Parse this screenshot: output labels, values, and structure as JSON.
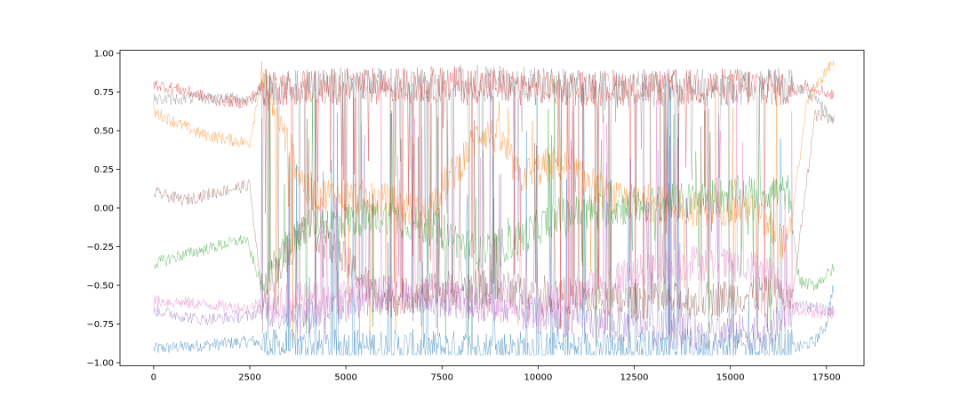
{
  "chart_data": {
    "type": "line",
    "title": "",
    "xlabel": "",
    "ylabel": "",
    "xlim": [
      -875,
      18475
    ],
    "ylim": [
      -1.02,
      1.02
    ],
    "x_ticks": [
      0,
      2500,
      5000,
      7500,
      10000,
      12500,
      15000,
      17500
    ],
    "x_tick_labels": [
      "0",
      "2500",
      "5000",
      "7500",
      "10000",
      "12500",
      "15000",
      "17500"
    ],
    "y_ticks": [
      1.0,
      0.75,
      0.5,
      0.25,
      0.0,
      -0.25,
      -0.5,
      -0.75,
      -1.0
    ],
    "y_tick_labels": [
      "1.00",
      "0.75",
      "0.50",
      "0.25",
      "0.00",
      "−0.25",
      "−0.50",
      "−0.75",
      "−1.00"
    ],
    "grid": false,
    "legend": "none",
    "x_count": 17700,
    "series": [
      {
        "color": "#1f77b4",
        "x": [
          0,
          1200,
          2600,
          3000,
          6000,
          8000,
          10000,
          12000,
          14000,
          16000,
          16800,
          17200,
          17500,
          17650
        ],
        "values": [
          -0.91,
          -0.89,
          -0.86,
          -0.9,
          -0.9,
          -0.91,
          -0.91,
          -0.91,
          -0.9,
          -0.9,
          -0.9,
          -0.86,
          -0.75,
          -0.53
        ]
      },
      {
        "color": "#ff7f0e",
        "x": [
          0,
          600,
          1200,
          1800,
          2500,
          2800,
          4000,
          6000,
          7000,
          8000,
          8500,
          9000,
          9500,
          10500,
          12000,
          14000,
          15500,
          16500,
          17000,
          17650
        ],
        "values": [
          0.62,
          0.55,
          0.48,
          0.45,
          0.42,
          0.85,
          0.1,
          0.05,
          -0.05,
          0.3,
          0.5,
          0.45,
          0.2,
          0.3,
          0.05,
          0.0,
          0.0,
          -0.25,
          0.7,
          0.94
        ]
      },
      {
        "color": "#2ca02c",
        "x": [
          0,
          800,
          1600,
          2400,
          2800,
          4000,
          6000,
          7500,
          8500,
          9500,
          10500,
          12000,
          14000,
          15500,
          16500,
          16800,
          17200,
          17650
        ],
        "values": [
          -0.36,
          -0.3,
          -0.25,
          -0.2,
          -0.5,
          -0.1,
          -0.05,
          -0.15,
          -0.3,
          -0.2,
          -0.05,
          0.0,
          0.05,
          0.1,
          0.1,
          -0.48,
          -0.5,
          -0.4
        ]
      },
      {
        "color": "#d62728",
        "x": [
          0,
          800,
          1600,
          2400,
          2800,
          6000,
          8000,
          10000,
          12000,
          14000,
          16000,
          16600,
          17000,
          17650
        ],
        "values": [
          0.8,
          0.76,
          0.7,
          0.68,
          0.78,
          0.79,
          0.8,
          0.78,
          0.78,
          0.78,
          0.79,
          0.75,
          0.8,
          0.73
        ]
      },
      {
        "color": "#9467bd",
        "x": [
          0,
          1200,
          2500,
          2800,
          4000,
          6000,
          8000,
          10000,
          12000,
          14000,
          16000,
          16800,
          17200,
          17650
        ],
        "values": [
          -0.66,
          -0.72,
          -0.7,
          -0.65,
          -0.7,
          -0.55,
          -0.6,
          -0.7,
          -0.75,
          -0.8,
          -0.8,
          -0.62,
          -0.64,
          -0.67
        ]
      },
      {
        "color": "#8c564b",
        "x": [
          0,
          800,
          1600,
          2500,
          2800,
          4000,
          6000,
          8000,
          10000,
          12000,
          14000,
          16000,
          16600,
          17200,
          17650
        ],
        "values": [
          0.1,
          0.05,
          0.1,
          0.15,
          -0.55,
          -0.1,
          -0.6,
          -0.5,
          -0.55,
          -0.6,
          -0.6,
          -0.55,
          -0.6,
          0.6,
          0.58
        ]
      },
      {
        "color": "#e377c2",
        "x": [
          0,
          1200,
          2500,
          2800,
          4000,
          6000,
          8000,
          10000,
          12000,
          14000,
          16000,
          16800,
          17650
        ],
        "values": [
          -0.6,
          -0.62,
          -0.65,
          -0.6,
          -0.6,
          -0.55,
          -0.6,
          -0.65,
          -0.45,
          -0.35,
          -0.4,
          -0.67,
          -0.68
        ]
      },
      {
        "color": "#7f7f7f",
        "x": [
          0,
          1000,
          2000,
          2600,
          2800,
          4000,
          6000,
          8000,
          10000,
          12000,
          14000,
          16000,
          16600,
          17200,
          17650
        ],
        "values": [
          0.7,
          0.71,
          0.71,
          0.7,
          0.77,
          0.78,
          0.8,
          0.81,
          0.79,
          0.77,
          0.78,
          0.78,
          0.79,
          0.72,
          0.57
        ]
      }
    ]
  }
}
